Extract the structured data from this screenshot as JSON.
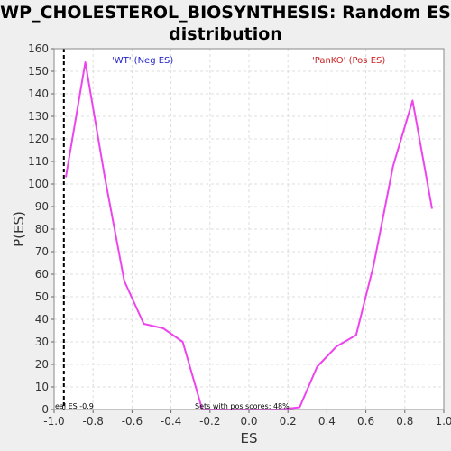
{
  "chart_data": {
    "type": "line",
    "title": "WP_CHOLESTEROL_BIOSYNTHESIS: Random ES distribution",
    "title_lines": [
      "WP_CHOLESTEROL_BIOSYNTHESIS: Random ES",
      "distribution"
    ],
    "xlabel": "ES",
    "ylabel": "P(ES)",
    "xlim": [
      -1.0,
      1.0
    ],
    "ylim": [
      0,
      160
    ],
    "xticks": [
      "-1.0",
      "-0.8",
      "-0.6",
      "-0.4",
      "-0.2",
      "0.0",
      "0.2",
      "0.4",
      "0.6",
      "0.8",
      "1.0"
    ],
    "yticks": [
      "0",
      "10",
      "20",
      "30",
      "40",
      "50",
      "60",
      "70",
      "80",
      "90",
      "100",
      "110",
      "120",
      "130",
      "140",
      "150",
      "160"
    ],
    "grid": true,
    "series": [
      {
        "color": "#ee44ee",
        "x": [
          -0.94,
          -0.84,
          -0.74,
          -0.64,
          -0.54,
          -0.44,
          -0.34,
          -0.24,
          -0.14,
          -0.04,
          0.06,
          0.16,
          0.26,
          0.35,
          0.45,
          0.55,
          0.64,
          0.74,
          0.84,
          0.94
        ],
        "y": [
          103,
          154,
          103,
          57,
          38,
          36,
          30,
          0,
          0,
          0,
          0,
          0,
          1,
          19,
          28,
          33,
          64,
          108,
          137,
          89
        ]
      }
    ],
    "annotations": {
      "left_label": "'WT' (Neg ES)",
      "right_label": "'PanKO' (Pos ES)",
      "real_es_label": "eal ES -0.9",
      "pos_scores_label": "Sets with pos scores: 48%",
      "real_es_value": -0.95
    },
    "colors": {
      "curve": "#ee44ee",
      "left_label": "#2222cc",
      "right_label": "#cc2222",
      "grid": "#dddddd",
      "plot_bg": "#ffffff",
      "page_bg": "#efefef"
    }
  }
}
